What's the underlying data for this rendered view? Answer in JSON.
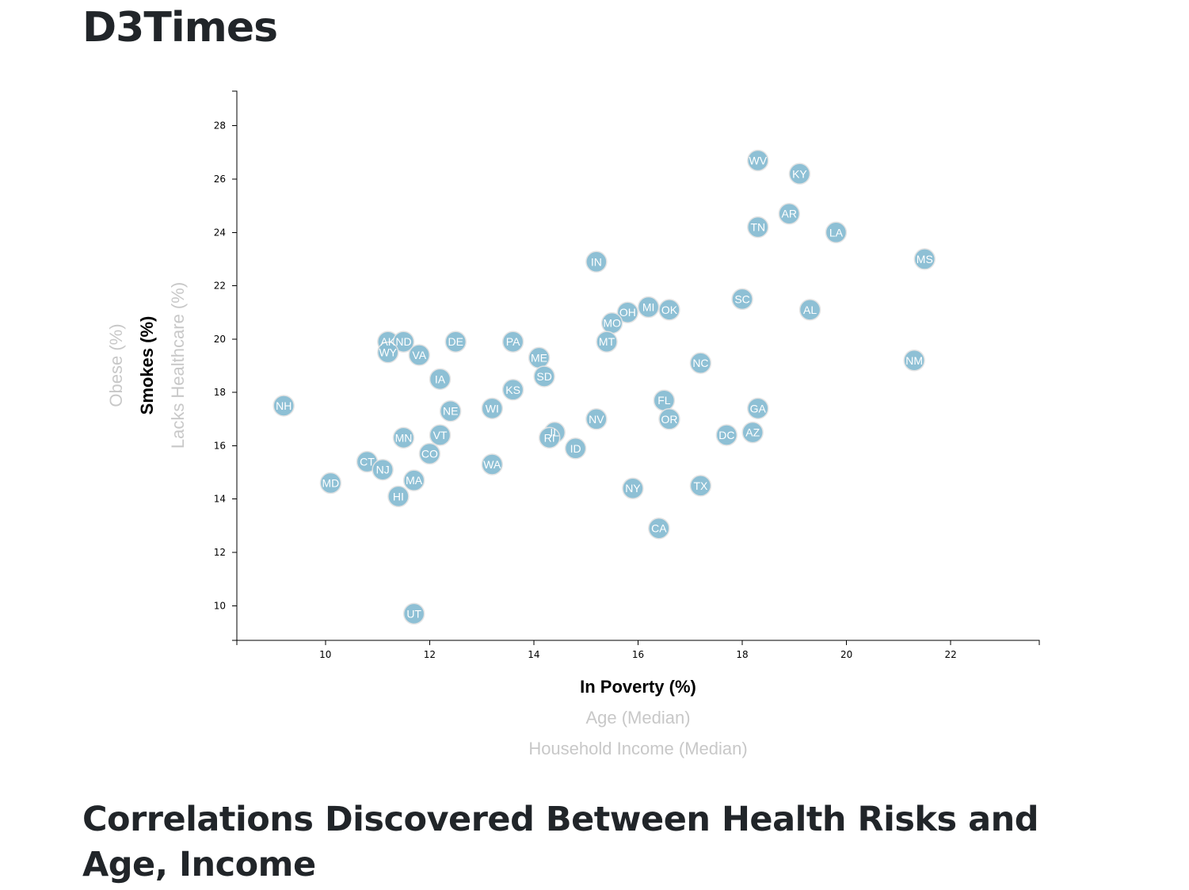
{
  "page": {
    "title": "D3Times",
    "section_heading": "Correlations Discovered Between Health Risks and Age, Income"
  },
  "chart_data": {
    "type": "scatter",
    "x_axis": {
      "labels": [
        {
          "text": "In Poverty (%)",
          "active": true
        },
        {
          "text": "Age (Median)",
          "active": false
        },
        {
          "text": "Household Income (Median)",
          "active": false
        }
      ],
      "xlim": [
        8.3,
        23.7
      ],
      "ticks": [
        10,
        12,
        14,
        16,
        18,
        20,
        22
      ]
    },
    "y_axis": {
      "labels": [
        {
          "text": "Lacks Healthcare (%)",
          "active": false
        },
        {
          "text": "Smokes (%)",
          "active": true
        },
        {
          "text": "Obese (%)",
          "active": false
        }
      ],
      "ylim": [
        8.7,
        29.3
      ],
      "ticks": [
        10,
        12,
        14,
        16,
        18,
        20,
        22,
        24,
        26,
        28
      ]
    },
    "marker_color": "#89bdd3",
    "points": [
      {
        "abbr": "WV",
        "x": 18.3,
        "y": 26.7
      },
      {
        "abbr": "KY",
        "x": 19.1,
        "y": 26.2
      },
      {
        "abbr": "AR",
        "x": 18.9,
        "y": 24.7
      },
      {
        "abbr": "TN",
        "x": 18.3,
        "y": 24.2
      },
      {
        "abbr": "LA",
        "x": 19.8,
        "y": 24.0
      },
      {
        "abbr": "MS",
        "x": 21.5,
        "y": 23.0
      },
      {
        "abbr": "IN",
        "x": 15.2,
        "y": 22.9
      },
      {
        "abbr": "SC",
        "x": 18.0,
        "y": 21.5
      },
      {
        "abbr": "AL",
        "x": 19.3,
        "y": 21.1
      },
      {
        "abbr": "MI",
        "x": 16.2,
        "y": 21.2
      },
      {
        "abbr": "OK",
        "x": 16.6,
        "y": 21.1
      },
      {
        "abbr": "OH",
        "x": 15.8,
        "y": 21.0
      },
      {
        "abbr": "MO",
        "x": 15.5,
        "y": 20.6
      },
      {
        "abbr": "MT",
        "x": 15.4,
        "y": 19.9
      },
      {
        "abbr": "NC",
        "x": 17.2,
        "y": 19.1
      },
      {
        "abbr": "NM",
        "x": 21.3,
        "y": 19.2
      },
      {
        "abbr": "AK",
        "x": 11.2,
        "y": 19.9
      },
      {
        "abbr": "ND",
        "x": 11.5,
        "y": 19.9
      },
      {
        "abbr": "WY",
        "x": 11.2,
        "y": 19.5
      },
      {
        "abbr": "VA",
        "x": 11.8,
        "y": 19.4
      },
      {
        "abbr": "DE",
        "x": 12.5,
        "y": 19.9
      },
      {
        "abbr": "PA",
        "x": 13.6,
        "y": 19.9
      },
      {
        "abbr": "ME",
        "x": 14.1,
        "y": 19.3
      },
      {
        "abbr": "SD",
        "x": 14.2,
        "y": 18.6
      },
      {
        "abbr": "IA",
        "x": 12.2,
        "y": 18.5
      },
      {
        "abbr": "KS",
        "x": 13.6,
        "y": 18.1
      },
      {
        "abbr": "NH",
        "x": 9.2,
        "y": 17.5
      },
      {
        "abbr": "NE",
        "x": 12.4,
        "y": 17.3
      },
      {
        "abbr": "WI",
        "x": 13.2,
        "y": 17.4
      },
      {
        "abbr": "FL",
        "x": 16.5,
        "y": 17.7
      },
      {
        "abbr": "GA",
        "x": 18.3,
        "y": 17.4
      },
      {
        "abbr": "NV",
        "x": 15.2,
        "y": 17.0
      },
      {
        "abbr": "OR",
        "x": 16.6,
        "y": 17.0
      },
      {
        "abbr": "IL",
        "x": 14.4,
        "y": 16.5
      },
      {
        "abbr": "RI",
        "x": 14.3,
        "y": 16.3
      },
      {
        "abbr": "MN",
        "x": 11.5,
        "y": 16.3
      },
      {
        "abbr": "VT",
        "x": 12.2,
        "y": 16.4
      },
      {
        "abbr": "DC",
        "x": 17.7,
        "y": 16.4
      },
      {
        "abbr": "AZ",
        "x": 18.2,
        "y": 16.5
      },
      {
        "abbr": "ID",
        "x": 14.8,
        "y": 15.9
      },
      {
        "abbr": "CO",
        "x": 12.0,
        "y": 15.7
      },
      {
        "abbr": "CT",
        "x": 10.8,
        "y": 15.4
      },
      {
        "abbr": "NJ",
        "x": 11.1,
        "y": 15.1
      },
      {
        "abbr": "WA",
        "x": 13.2,
        "y": 15.3
      },
      {
        "abbr": "MD",
        "x": 10.1,
        "y": 14.6
      },
      {
        "abbr": "MA",
        "x": 11.7,
        "y": 14.7
      },
      {
        "abbr": "NY",
        "x": 15.9,
        "y": 14.4
      },
      {
        "abbr": "TX",
        "x": 17.2,
        "y": 14.5
      },
      {
        "abbr": "HI",
        "x": 11.4,
        "y": 14.1
      },
      {
        "abbr": "CA",
        "x": 16.4,
        "y": 12.9
      },
      {
        "abbr": "UT",
        "x": 11.7,
        "y": 9.7
      }
    ]
  }
}
